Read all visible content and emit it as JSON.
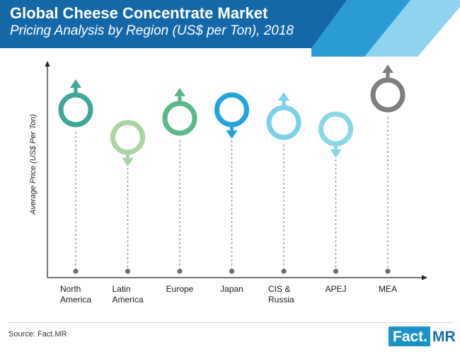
{
  "header": {
    "title": "Global Cheese Concentrate Market",
    "subtitle": "Pricing Analysis by Region (US$ per Ton), 2018"
  },
  "chart_data": {
    "type": "scatter",
    "title": "Global Cheese Concentrate Market",
    "subtitle": "Pricing Analysis by Region (US$ per Ton), 2018",
    "xlabel": "",
    "ylabel": "Average Price (US$ Per Ton)",
    "grid": false,
    "legend": "none",
    "categories": [
      "North\nAmerica",
      "Latin\nAmerica",
      "Europe",
      "Japan",
      "CIS &\nRussia",
      "APEJ",
      "MEA"
    ],
    "values": [
      0.79,
      0.66,
      0.75,
      0.79,
      0.73,
      0.7,
      0.86
    ],
    "value_scale": "relative (0 to 1); no numeric axis values shown",
    "markers": [
      {
        "region": "North America",
        "trend": "up",
        "color": "#3fa79a"
      },
      {
        "region": "Latin America",
        "trend": "down",
        "color": "#a8d5a0"
      },
      {
        "region": "Europe",
        "trend": "up",
        "color": "#5ab889"
      },
      {
        "region": "Japan",
        "trend": "down",
        "color": "#22a4dc"
      },
      {
        "region": "CIS & Russia",
        "trend": "up",
        "color": "#7cd0ea"
      },
      {
        "region": "APEJ",
        "trend": "down",
        "color": "#89d8e8"
      },
      {
        "region": "MEA",
        "trend": "up",
        "color": "#7e7e7e"
      }
    ]
  },
  "footer": {
    "source": "Source: Fact.MR",
    "logo_left": "Fact.",
    "logo_right": "MR"
  },
  "colors": {
    "header_dark": "#1568a8",
    "header_mid": "#2b9bd6",
    "header_light": "#8fd3ee",
    "axis": "#222222",
    "dashes": "#9a9a9a",
    "base_dot": "#6d6d6d"
  }
}
